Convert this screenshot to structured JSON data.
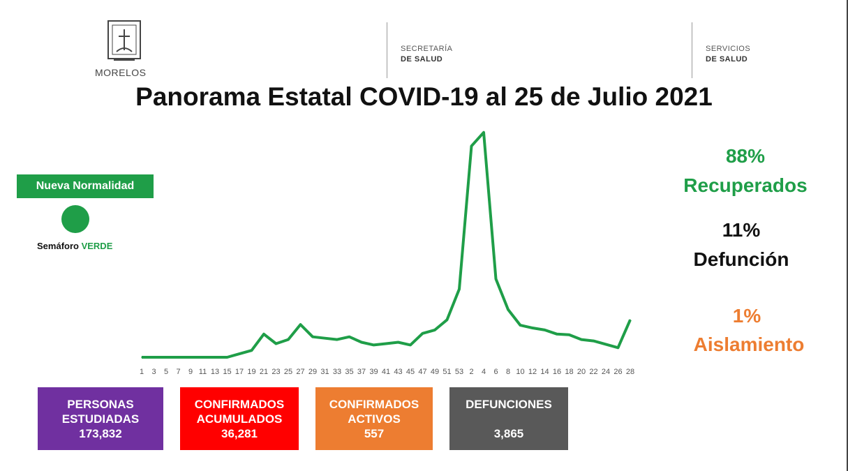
{
  "header": {
    "logo_text": "MORELOS",
    "secretaria": [
      "SECRETARÍA",
      "DE SALUD"
    ],
    "servicios": [
      "SERVICIOS",
      "DE SALUD"
    ]
  },
  "title": "Panorama Estatal COVID-19 al 25 de Julio 2021",
  "status": {
    "badge": "Nueva Normalidad",
    "semaforo_prefix": "Semáforo ",
    "semaforo_value": "VERDE",
    "color": "#1f9e48"
  },
  "stats": {
    "recuperados_pct": "88%",
    "recuperados_label": "Recuperados",
    "defuncion_pct": "11%",
    "defuncion_label": "Defunción",
    "aislamiento_pct": "1%",
    "aislamiento_label": "Aislamiento"
  },
  "cards": [
    {
      "lines": [
        "PERSONAS",
        "ESTUDIADAS"
      ],
      "value": "173,832",
      "color": "#7030a0"
    },
    {
      "lines": [
        "CONFIRMADOS",
        "ACUMULADOS"
      ],
      "value": "36,281",
      "color": "#ff0000"
    },
    {
      "lines": [
        "CONFIRMADOS",
        "ACTIVOS"
      ],
      "value": "557",
      "color": "#ed7d31"
    },
    {
      "lines": [
        "DEFUNCIONES",
        ""
      ],
      "value": "3,865",
      "color": "#595959"
    }
  ],
  "chart_data": {
    "type": "line",
    "x": [
      "1",
      "3",
      "5",
      "7",
      "9",
      "11",
      "13",
      "15",
      "17",
      "19",
      "21",
      "23",
      "25",
      "27",
      "29",
      "31",
      "33",
      "35",
      "37",
      "39",
      "41",
      "43",
      "45",
      "47",
      "49",
      "51",
      "53",
      "2",
      "4",
      "6",
      "8",
      "10",
      "12",
      "14",
      "16",
      "18",
      "20",
      "22",
      "24",
      "26",
      "28"
    ],
    "series": [
      {
        "values": [
          0,
          0,
          0,
          0,
          0,
          0,
          0,
          0,
          5,
          10,
          34,
          20,
          26,
          48,
          30,
          28,
          26,
          30,
          22,
          18,
          20,
          22,
          18,
          35,
          40,
          55,
          100,
          310,
          330,
          115,
          70,
          47,
          43,
          40,
          34,
          33,
          26,
          24,
          19,
          14,
          55
        ],
        "color": "#1f9e48"
      }
    ],
    "ylim": [
      0,
      340
    ],
    "grid": false,
    "legend": "none"
  }
}
